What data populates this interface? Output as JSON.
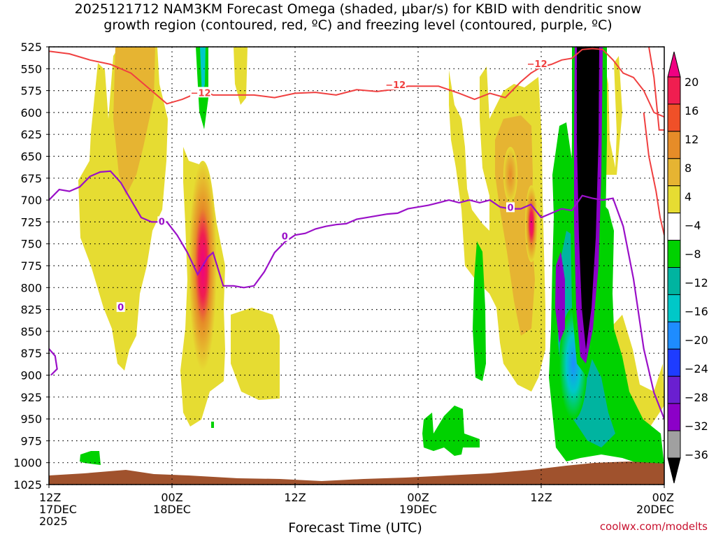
{
  "title_line1": "2025121712 NAM3KM Forecast Omega (shaded, μbar/s) for KBID with dendritic snow",
  "title_line2": "growth region (contoured, red, ºC) and freezing level (contoured, purple, ºC)",
  "credit": "coolwx.com/modelts",
  "chart_data": {
    "type": "heatmap",
    "xlabel": "Forecast Time (UTC)",
    "ylabel": "",
    "x_range_hours": [
      0,
      60
    ],
    "y_range_hPa": [
      1025,
      525
    ],
    "y_ticks": [
      525,
      550,
      575,
      600,
      625,
      650,
      675,
      700,
      725,
      750,
      775,
      800,
      825,
      850,
      875,
      900,
      925,
      950,
      975,
      1000,
      1025
    ],
    "x_ticks": [
      {
        "h": 0,
        "label": [
          "12Z",
          "17DEC",
          "2025"
        ]
      },
      {
        "h": 12,
        "label": [
          "00Z",
          "18DEC"
        ]
      },
      {
        "h": 24,
        "label": [
          "12Z"
        ]
      },
      {
        "h": 36,
        "label": [
          "00Z",
          "19DEC"
        ]
      },
      {
        "h": 48,
        "label": [
          "12Z"
        ]
      },
      {
        "h": 60,
        "label": [
          "00Z",
          "20DEC"
        ]
      }
    ],
    "grid": "dotted",
    "colorbar": {
      "levels": [
        -36,
        -32,
        -28,
        -24,
        -20,
        -16,
        -12,
        -8,
        -4,
        4,
        8,
        12,
        16,
        20
      ],
      "labels": [
        "20",
        "16",
        "12",
        "8",
        "4",
        "−4",
        "−8",
        "−12",
        "−16",
        "−20",
        "−24",
        "−28",
        "−32",
        "−36"
      ],
      "colors": [
        "#000000",
        "#a0a0a0",
        "#8c00c8",
        "#6a1fd0",
        "#1e3cff",
        "#1e8cff",
        "#00c8c8",
        "#00b4a0",
        "#00d200",
        "#ffffff",
        "#e6dc32",
        "#e6b432",
        "#e68c28",
        "#f05028",
        "#f01e50",
        "#f00082"
      ]
    },
    "dgz_label": "−12",
    "dgz_line_C": -12,
    "dgz_line": [
      [
        0,
        530
      ],
      [
        2,
        533
      ],
      [
        4,
        540
      ],
      [
        6,
        545
      ],
      [
        8,
        555
      ],
      [
        10,
        575
      ],
      [
        11.5,
        590
      ],
      [
        13,
        585
      ],
      [
        15,
        575
      ],
      [
        16,
        580
      ],
      [
        18,
        580
      ],
      [
        20,
        580
      ],
      [
        22,
        583
      ],
      [
        24,
        578
      ],
      [
        26,
        577
      ],
      [
        28,
        580
      ],
      [
        30,
        574
      ],
      [
        32,
        576
      ],
      [
        34,
        573
      ],
      [
        35,
        570
      ],
      [
        36,
        570
      ],
      [
        38,
        570
      ],
      [
        40,
        578
      ],
      [
        41.5,
        585
      ],
      [
        43,
        578
      ],
      [
        44.5,
        583
      ],
      [
        46,
        565
      ],
      [
        47,
        555
      ],
      [
        48,
        548
      ],
      [
        49,
        545
      ],
      [
        50,
        540
      ],
      [
        51,
        538
      ],
      [
        52,
        528
      ],
      [
        53,
        527
      ],
      [
        54,
        528
      ],
      [
        55,
        540
      ],
      [
        56,
        555
      ],
      [
        57,
        560
      ],
      [
        58,
        575
      ],
      [
        59,
        600
      ],
      [
        60,
        605
      ]
    ],
    "dgz_line_right": [
      [
        58.5,
        525
      ],
      [
        59,
        560
      ],
      [
        59.5,
        620
      ],
      [
        60,
        620
      ]
    ],
    "dgz_line_lower": [
      [
        58,
        600
      ],
      [
        58.5,
        650
      ],
      [
        59.2,
        690
      ],
      [
        59.6,
        720
      ],
      [
        60,
        740
      ]
    ],
    "freezing_label": "0",
    "freezing_line_C": 0,
    "freezing_line": [
      [
        0,
        700
      ],
      [
        1,
        688
      ],
      [
        2,
        690
      ],
      [
        3,
        685
      ],
      [
        4,
        673
      ],
      [
        5,
        668
      ],
      [
        6,
        667
      ],
      [
        7,
        680
      ],
      [
        8,
        700
      ],
      [
        9,
        720
      ],
      [
        10,
        725
      ],
      [
        11.5,
        725
      ],
      [
        12.5,
        740
      ],
      [
        13.5,
        760
      ],
      [
        14.5,
        785
      ],
      [
        15.5,
        765
      ],
      [
        16,
        760
      ],
      [
        17,
        798
      ],
      [
        18,
        798
      ],
      [
        19,
        800
      ],
      [
        20,
        798
      ],
      [
        21,
        782
      ],
      [
        22,
        760
      ],
      [
        23,
        748
      ],
      [
        24,
        740
      ],
      [
        25,
        738
      ],
      [
        26,
        733
      ],
      [
        27,
        730
      ],
      [
        28,
        728
      ],
      [
        29,
        727
      ],
      [
        30,
        722
      ],
      [
        31,
        720
      ],
      [
        32,
        718
      ],
      [
        33,
        716
      ],
      [
        34,
        715
      ],
      [
        35,
        710
      ],
      [
        36,
        708
      ],
      [
        37,
        706
      ],
      [
        38,
        703
      ],
      [
        39,
        700
      ],
      [
        40,
        703
      ],
      [
        41,
        700
      ],
      [
        42,
        703
      ],
      [
        43,
        700
      ],
      [
        44,
        708
      ],
      [
        45,
        710
      ],
      [
        46,
        710
      ],
      [
        47,
        705
      ],
      [
        48,
        720
      ],
      [
        49,
        715
      ],
      [
        50,
        710
      ],
      [
        51,
        712
      ],
      [
        52,
        695
      ],
      [
        53,
        698
      ],
      [
        54,
        700
      ],
      [
        55,
        698
      ],
      [
        56,
        730
      ],
      [
        57,
        790
      ],
      [
        58,
        870
      ],
      [
        59,
        920
      ],
      [
        60,
        950
      ]
    ],
    "freezing_line_left": [
      [
        0,
        870
      ],
      [
        0.6,
        878
      ],
      [
        0.8,
        893
      ],
      [
        0.2,
        900
      ]
    ]
  }
}
